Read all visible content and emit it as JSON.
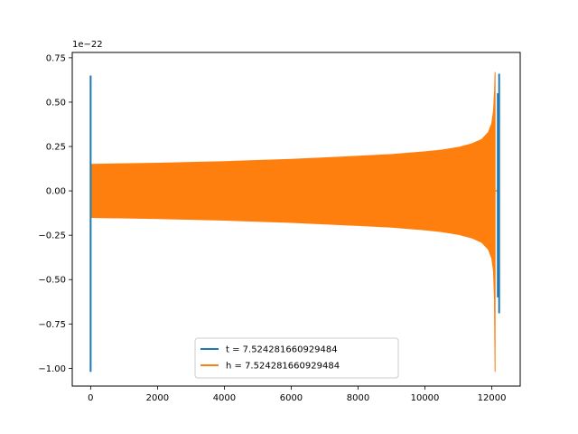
{
  "chart_data": {
    "type": "line",
    "title": "",
    "xlabel": "",
    "ylabel": "",
    "y_offset_label": "1e−22",
    "xlim": [
      -550,
      12850
    ],
    "ylim": [
      -1.1,
      0.78
    ],
    "x_ticks": [
      0,
      2000,
      4000,
      6000,
      8000,
      10000,
      12000
    ],
    "x_tick_labels": [
      "0",
      "2000",
      "4000",
      "6000",
      "8000",
      "10000",
      "12000"
    ],
    "y_ticks": [
      0.75,
      0.5,
      0.25,
      0.0,
      -0.25,
      -0.5,
      -0.75,
      -1.0
    ],
    "y_tick_labels": [
      "0.75",
      "0.50",
      "0.25",
      "0.00",
      "−0.25",
      "−0.50",
      "−0.75",
      "−1.00"
    ],
    "grid": false,
    "legend_position": "bottom-center",
    "series": [
      {
        "name": "t = 7.524281660929484",
        "color": "#1f77b4",
        "segments": [
          {
            "x": [
              0,
              0
            ],
            "y": [
              -1.02,
              0.65
            ]
          },
          {
            "x": [
              12180,
              12180
            ],
            "y": [
              -0.6,
              0.55
            ]
          },
          {
            "x": [
              12220,
              12220
            ],
            "y": [
              -0.69,
              0.66
            ]
          }
        ]
      },
      {
        "name": "h = 7.524281660929484",
        "color": "#ff7f0e",
        "envelope": {
          "x": [
            0,
            2000,
            4000,
            6000,
            8000,
            9000,
            10000,
            10500,
            11000,
            11400,
            11700,
            11900,
            12000,
            12050,
            12080,
            12100
          ],
          "upper": [
            0.15,
            0.156,
            0.165,
            0.178,
            0.195,
            0.205,
            0.22,
            0.23,
            0.245,
            0.265,
            0.29,
            0.33,
            0.38,
            0.45,
            0.55,
            0.67
          ],
          "lower": [
            -0.15,
            -0.156,
            -0.165,
            -0.178,
            -0.195,
            -0.205,
            -0.22,
            -0.23,
            -0.245,
            -0.265,
            -0.29,
            -0.33,
            -0.38,
            -0.45,
            -0.6,
            -1.02
          ]
        },
        "tail": {
          "x": [
            12100,
            12230
          ],
          "y": [
            0.0,
            0.0
          ]
        }
      }
    ]
  }
}
